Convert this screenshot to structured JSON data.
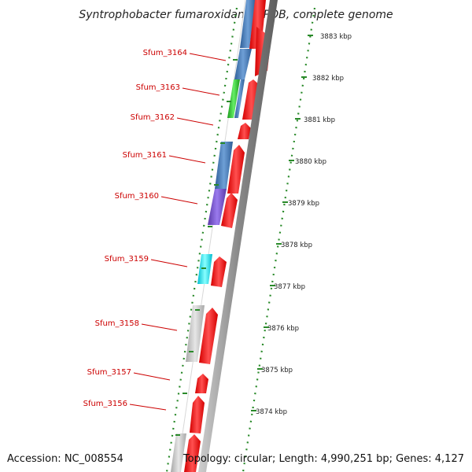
{
  "title": "Syntrophobacter fumaroxidans MPOB, complete genome",
  "footer": {
    "accession": "Accession: NC_008554",
    "topology": "Topology: circular; Length: 4,990,251 bp; Genes: 4,127"
  },
  "gene_labels": [
    "Sfum_3164",
    "Sfum_3163",
    "Sfum_3162",
    "Sfum_3161",
    "Sfum_3160",
    "Sfum_3159",
    "Sfum_3158",
    "Sfum_3157",
    "Sfum_3156"
  ],
  "scale_labels": [
    "3883 kbp",
    "3882 kbp",
    "3881 kbp",
    "3880 kbp",
    "3879 kbp",
    "3878 kbp",
    "3877 kbp",
    "3876 kbp",
    "3875 kbp",
    "3874 kbp"
  ],
  "colors": {
    "cds": "#ff0000",
    "cog_blue": "#4a80bb",
    "cog_green": "#33cc33",
    "cog_purple": "#7a5acc",
    "cog_cyan": "#00e5ee",
    "cog_grey": "#c0c0c0",
    "backbone": "#888888",
    "tick": "#2a8a2a",
    "label": "#cc0000"
  }
}
